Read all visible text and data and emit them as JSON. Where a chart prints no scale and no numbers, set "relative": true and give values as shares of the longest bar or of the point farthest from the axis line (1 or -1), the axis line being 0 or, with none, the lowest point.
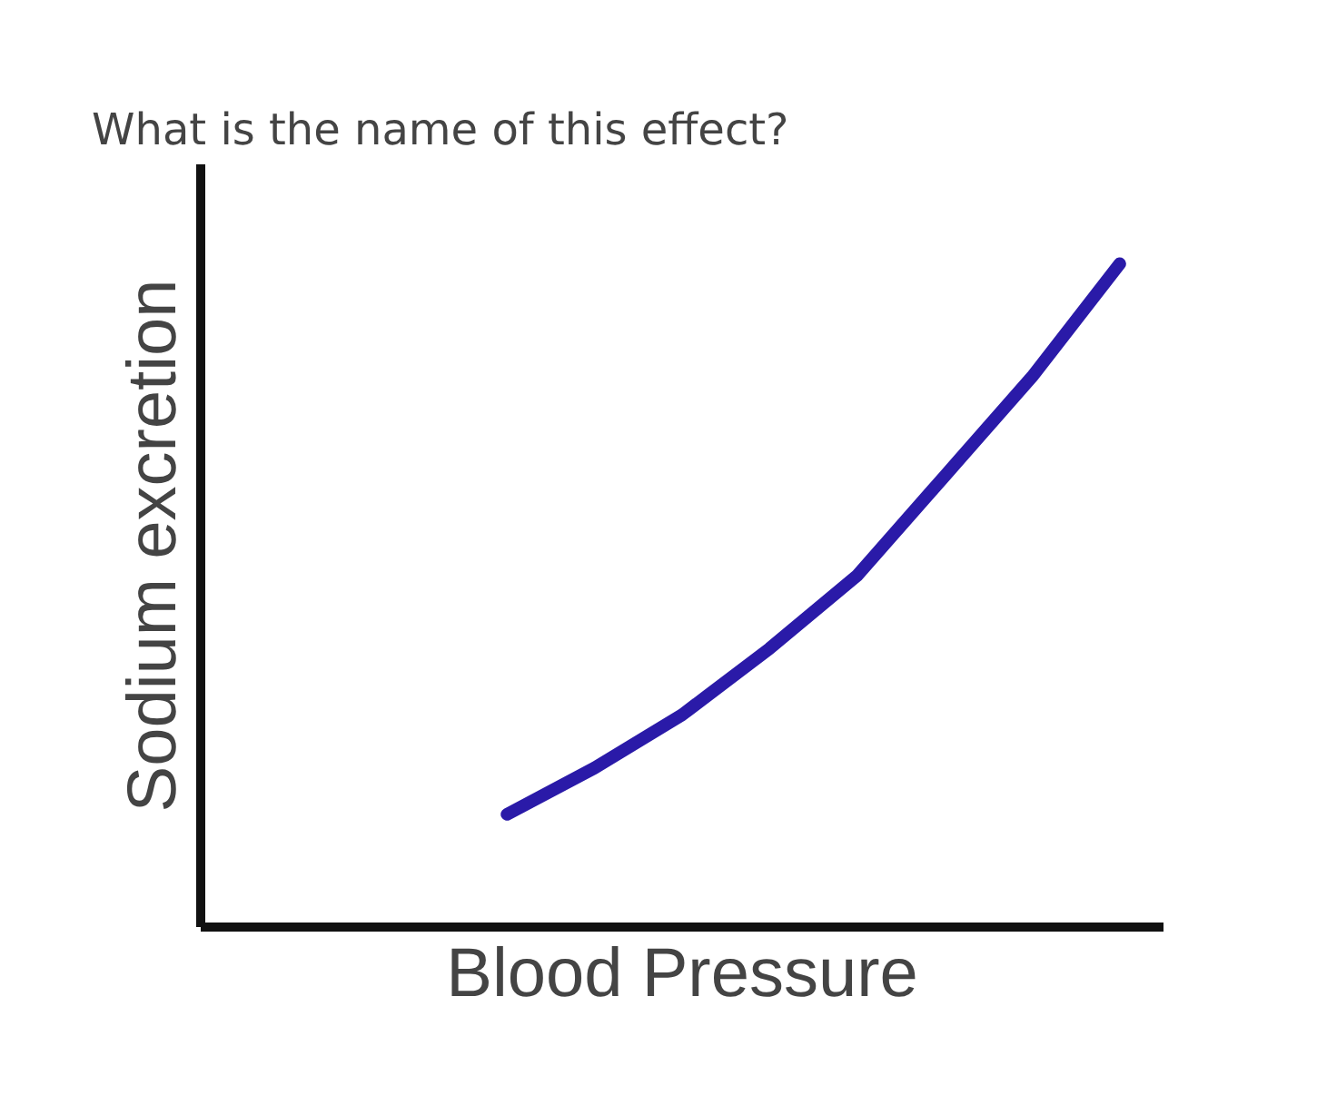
{
  "chart_data": {
    "type": "line",
    "title": "What is the name of this effect?",
    "xlabel": "Blood Pressure",
    "ylabel": "Sodium excretion",
    "relative": true,
    "categories": [
      null,
      null,
      null,
      null,
      null,
      null,
      null,
      null,
      null,
      null,
      null
    ],
    "series": [
      {
        "color": "#2a1aa8",
        "values": [
          null,
          null,
          null,
          0.17,
          0.24,
          0.32,
          0.42,
          0.53,
          0.68,
          0.83,
          1.0
        ]
      }
    ],
    "marker": "none",
    "line_style": "solid"
  }
}
